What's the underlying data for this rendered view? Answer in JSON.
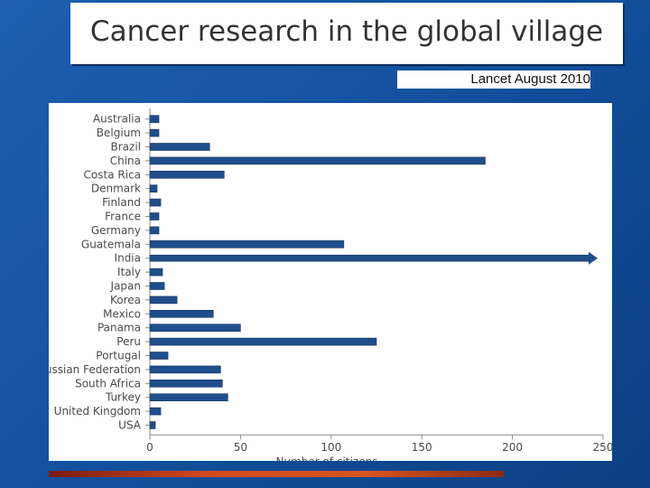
{
  "slide": {
    "title": "Cancer research in the global village",
    "source": "Lancet August 2010"
  },
  "chart_data": {
    "type": "bar",
    "orientation": "horizontal",
    "categories": [
      "Australia",
      "Belgium",
      "Brazil",
      "China",
      "Costa Rica",
      "Denmark",
      "Finland",
      "France",
      "Germany",
      "Guatemala",
      "India",
      "Italy",
      "Japan",
      "Korea",
      "Mexico",
      "Panama",
      "Peru",
      "Portugal",
      "Russian Federation",
      "South Africa",
      "Turkey",
      "United Kingdom",
      "USA"
    ],
    "values": [
      5,
      5,
      33,
      185,
      41,
      4,
      6,
      5,
      5,
      107,
      250,
      7,
      8,
      15,
      35,
      50,
      125,
      10,
      39,
      40,
      43,
      6,
      3
    ],
    "truncated": [
      "India"
    ],
    "xlabel": "Number of citizens",
    "xlim": [
      0,
      250
    ],
    "xticks": [
      0,
      50,
      100,
      150,
      200,
      250
    ],
    "bar_color": "#1f4e8c",
    "grid": false
  }
}
